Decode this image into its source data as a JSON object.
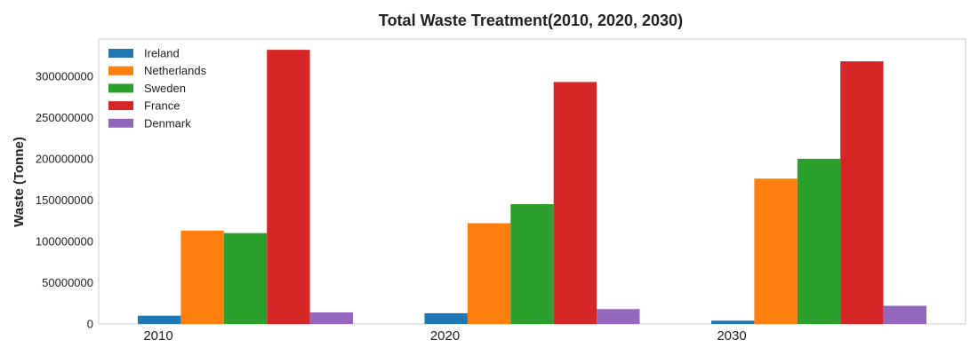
{
  "chart_data": {
    "type": "bar",
    "title": "Total Waste Treatment(2010, 2020, 2030)",
    "xlabel": "",
    "ylabel": "Waste (Tonne)",
    "ylim": [
      0,
      345000000
    ],
    "yticks": [
      "0",
      "50000000",
      "100000000",
      "150000000",
      "200000000",
      "250000000",
      "300000000"
    ],
    "grid": false,
    "legend_position": "top-left",
    "categories": [
      "2010",
      "2020",
      "2030"
    ],
    "series": [
      {
        "name": "Ireland",
        "color": "#1f77b4",
        "values": [
          10000000,
          13000000,
          4000000
        ]
      },
      {
        "name": "Netherlands",
        "color": "#ff7f0e",
        "values": [
          113000000,
          122000000,
          176000000
        ]
      },
      {
        "name": "Sweden",
        "color": "#2ca02c",
        "values": [
          110000000,
          145000000,
          200000000
        ]
      },
      {
        "name": "France",
        "color": "#d62728",
        "values": [
          332000000,
          293000000,
          318000000
        ]
      },
      {
        "name": "Denmark",
        "color": "#9467bd",
        "values": [
          14000000,
          18000000,
          22000000
        ]
      }
    ]
  }
}
